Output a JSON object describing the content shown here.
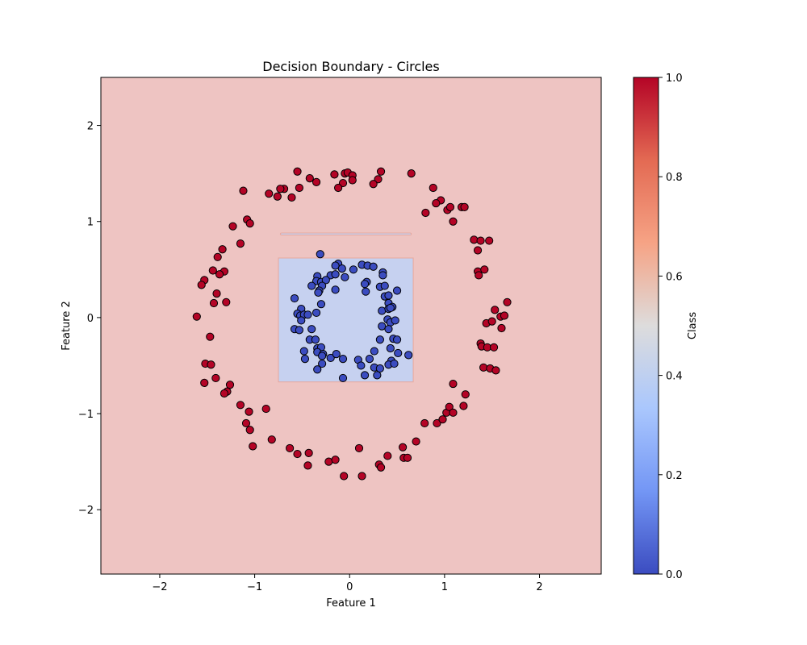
{
  "chart_data": {
    "type": "scatter",
    "title": "Decision Boundary - Circles",
    "xlabel": "Feature 1",
    "ylabel": "Feature 2",
    "xlim": [
      -2.62,
      2.65
    ],
    "ylim": [
      -2.67,
      2.5
    ],
    "xticks": [
      -2,
      -1,
      0,
      1,
      2
    ],
    "yticks": [
      -2,
      -1,
      0,
      1,
      2
    ],
    "grid": false,
    "colors": {
      "class0": "#3b4cc0",
      "class1": "#b40426",
      "region0": "#c6d1f0",
      "region1": "#eec4c2",
      "edge": "#000000"
    },
    "regions": [
      {
        "class": 1,
        "x": [
          -2.62,
          2.65
        ],
        "y": [
          -2.67,
          2.5
        ]
      },
      {
        "class": 0,
        "x": [
          -0.75,
          0.67
        ],
        "y": [
          -0.67,
          0.62
        ]
      },
      {
        "class": 0,
        "x": [
          -0.73,
          0.65
        ],
        "y": [
          0.86,
          0.88
        ]
      }
    ],
    "colorbar": {
      "label": "Class",
      "range": [
        0.0,
        1.0
      ],
      "ticks": [
        "0.0",
        "0.2",
        "0.4",
        "0.6",
        "0.8",
        "1.0"
      ],
      "colormap": [
        "#3b4cc0",
        "#7396f5",
        "#aac7fd",
        "#dddcdc",
        "#f6a385",
        "#e36a53",
        "#b40426"
      ]
    },
    "series": [
      {
        "class": 1,
        "color": "#b40426",
        "points": [
          [
            -0.55,
            1.52
          ],
          [
            -0.35,
            1.41
          ],
          [
            -0.42,
            1.45
          ],
          [
            -0.53,
            1.35
          ],
          [
            -0.69,
            1.34
          ],
          [
            -0.73,
            1.34
          ],
          [
            -0.85,
            1.29
          ],
          [
            -0.76,
            1.26
          ],
          [
            -0.61,
            1.25
          ],
          [
            -0.16,
            1.49
          ],
          [
            -0.05,
            1.5
          ],
          [
            -0.02,
            1.51
          ],
          [
            0.03,
            1.48
          ],
          [
            0.03,
            1.43
          ],
          [
            -0.07,
            1.4
          ],
          [
            -0.12,
            1.35
          ],
          [
            0.33,
            1.52
          ],
          [
            0.3,
            1.44
          ],
          [
            0.25,
            1.39
          ],
          [
            0.65,
            1.5
          ],
          [
            0.88,
            1.35
          ],
          [
            0.96,
            1.22
          ],
          [
            1.03,
            1.12
          ],
          [
            1.06,
            1.15
          ],
          [
            0.91,
            1.19
          ],
          [
            0.8,
            1.09
          ],
          [
            1.18,
            1.15
          ],
          [
            1.21,
            1.15
          ],
          [
            1.09,
            1.0
          ],
          [
            -1.12,
            1.32
          ],
          [
            -1.08,
            1.02
          ],
          [
            -1.05,
            0.98
          ],
          [
            -1.23,
            0.95
          ],
          [
            -1.15,
            0.77
          ],
          [
            -1.34,
            0.71
          ],
          [
            -1.39,
            0.63
          ],
          [
            -1.32,
            0.48
          ],
          [
            -1.44,
            0.49
          ],
          [
            -1.37,
            0.45
          ],
          [
            -1.53,
            0.39
          ],
          [
            -1.56,
            0.34
          ],
          [
            -1.4,
            0.25
          ],
          [
            -1.3,
            0.16
          ],
          [
            -1.43,
            0.15
          ],
          [
            -1.61,
            0.01
          ],
          [
            -1.47,
            -0.2
          ],
          [
            -1.52,
            -0.48
          ],
          [
            -1.46,
            -0.49
          ],
          [
            -1.41,
            -0.63
          ],
          [
            -1.53,
            -0.68
          ],
          [
            -1.26,
            -0.7
          ],
          [
            -1.29,
            -0.77
          ],
          [
            -1.32,
            -0.79
          ],
          [
            -1.15,
            -0.91
          ],
          [
            -1.06,
            -0.98
          ],
          [
            -0.88,
            -0.95
          ],
          [
            -1.09,
            -1.1
          ],
          [
            -1.05,
            -1.17
          ],
          [
            -1.02,
            -1.34
          ],
          [
            -0.82,
            -1.27
          ],
          [
            -0.63,
            -1.36
          ],
          [
            -0.55,
            -1.42
          ],
          [
            -0.43,
            -1.41
          ],
          [
            -0.44,
            -1.54
          ],
          [
            -0.22,
            -1.5
          ],
          [
            -0.15,
            -1.48
          ],
          [
            -0.06,
            -1.65
          ],
          [
            0.1,
            -1.36
          ],
          [
            0.13,
            -1.65
          ],
          [
            0.31,
            -1.53
          ],
          [
            0.33,
            -1.56
          ],
          [
            0.4,
            -1.44
          ],
          [
            0.56,
            -1.35
          ],
          [
            0.57,
            -1.46
          ],
          [
            0.61,
            -1.46
          ],
          [
            0.7,
            -1.29
          ],
          [
            0.79,
            -1.1
          ],
          [
            0.92,
            -1.1
          ],
          [
            0.98,
            -1.06
          ],
          [
            1.02,
            -0.99
          ],
          [
            1.05,
            -0.93
          ],
          [
            1.09,
            -0.99
          ],
          [
            1.2,
            -0.92
          ],
          [
            1.09,
            -0.69
          ],
          [
            1.22,
            -0.8
          ],
          [
            1.31,
            0.81
          ],
          [
            1.38,
            0.8
          ],
          [
            1.47,
            0.8
          ],
          [
            1.35,
            0.7
          ],
          [
            1.35,
            0.48
          ],
          [
            1.36,
            0.44
          ],
          [
            1.42,
            0.5
          ],
          [
            1.53,
            0.08
          ],
          [
            1.66,
            0.16
          ],
          [
            1.59,
            0.01
          ],
          [
            1.63,
            0.02
          ],
          [
            1.44,
            -0.06
          ],
          [
            1.5,
            -0.04
          ],
          [
            1.6,
            -0.11
          ],
          [
            1.38,
            -0.27
          ],
          [
            1.39,
            -0.3
          ],
          [
            1.45,
            -0.31
          ],
          [
            1.52,
            -0.31
          ],
          [
            1.41,
            -0.52
          ],
          [
            1.48,
            -0.53
          ],
          [
            1.54,
            -0.55
          ]
        ]
      },
      {
        "class": 0,
        "color": "#3b4cc0",
        "points": [
          [
            -0.31,
            0.66
          ],
          [
            -0.12,
            0.56
          ],
          [
            -0.15,
            0.54
          ],
          [
            -0.08,
            0.51
          ],
          [
            0.13,
            0.55
          ],
          [
            0.19,
            0.54
          ],
          [
            0.25,
            0.53
          ],
          [
            0.04,
            0.5
          ],
          [
            0.35,
            0.47
          ],
          [
            0.35,
            0.44
          ],
          [
            -0.34,
            0.43
          ],
          [
            -0.2,
            0.44
          ],
          [
            -0.15,
            0.45
          ],
          [
            -0.05,
            0.42
          ],
          [
            -0.35,
            0.38
          ],
          [
            -0.3,
            0.37
          ],
          [
            -0.25,
            0.39
          ],
          [
            -0.4,
            0.33
          ],
          [
            -0.29,
            0.33
          ],
          [
            -0.32,
            0.28
          ],
          [
            -0.33,
            0.26
          ],
          [
            -0.15,
            0.29
          ],
          [
            0.18,
            0.37
          ],
          [
            0.16,
            0.35
          ],
          [
            0.32,
            0.32
          ],
          [
            0.37,
            0.33
          ],
          [
            0.5,
            0.28
          ],
          [
            0.17,
            0.27
          ],
          [
            -0.58,
            0.2
          ],
          [
            -0.3,
            0.14
          ],
          [
            0.37,
            0.22
          ],
          [
            0.41,
            0.23
          ],
          [
            0.41,
            0.15
          ],
          [
            0.34,
            0.07
          ],
          [
            0.41,
            0.09
          ],
          [
            0.45,
            0.11
          ],
          [
            0.43,
            0.1
          ],
          [
            -0.51,
            0.09
          ],
          [
            -0.55,
            0.04
          ],
          [
            -0.52,
            0.02
          ],
          [
            -0.48,
            0.03
          ],
          [
            -0.44,
            0.03
          ],
          [
            -0.35,
            0.05
          ],
          [
            0.4,
            -0.02
          ],
          [
            0.43,
            -0.05
          ],
          [
            0.48,
            -0.03
          ],
          [
            -0.51,
            -0.03
          ],
          [
            -0.58,
            -0.12
          ],
          [
            -0.53,
            -0.13
          ],
          [
            -0.4,
            -0.12
          ],
          [
            0.34,
            -0.09
          ],
          [
            0.41,
            -0.12
          ],
          [
            -0.42,
            -0.23
          ],
          [
            -0.36,
            -0.23
          ],
          [
            0.32,
            -0.23
          ],
          [
            0.46,
            -0.22
          ],
          [
            0.5,
            -0.23
          ],
          [
            -0.34,
            -0.32
          ],
          [
            -0.3,
            -0.31
          ],
          [
            -0.34,
            -0.36
          ],
          [
            -0.28,
            -0.38
          ],
          [
            0.43,
            -0.32
          ],
          [
            0.26,
            -0.35
          ],
          [
            0.51,
            -0.37
          ],
          [
            0.62,
            -0.39
          ],
          [
            -0.48,
            -0.35
          ],
          [
            -0.47,
            -0.43
          ],
          [
            -0.29,
            -0.4
          ],
          [
            -0.2,
            -0.42
          ],
          [
            -0.14,
            -0.38
          ],
          [
            -0.07,
            -0.43
          ],
          [
            0.09,
            -0.44
          ],
          [
            0.21,
            -0.43
          ],
          [
            0.44,
            -0.45
          ],
          [
            -0.29,
            -0.48
          ],
          [
            0.12,
            -0.5
          ],
          [
            0.26,
            -0.52
          ],
          [
            0.32,
            -0.53
          ],
          [
            0.41,
            -0.49
          ],
          [
            0.47,
            -0.48
          ],
          [
            -0.34,
            -0.54
          ],
          [
            -0.07,
            -0.63
          ],
          [
            0.16,
            -0.6
          ],
          [
            0.29,
            -0.6
          ]
        ]
      }
    ]
  }
}
